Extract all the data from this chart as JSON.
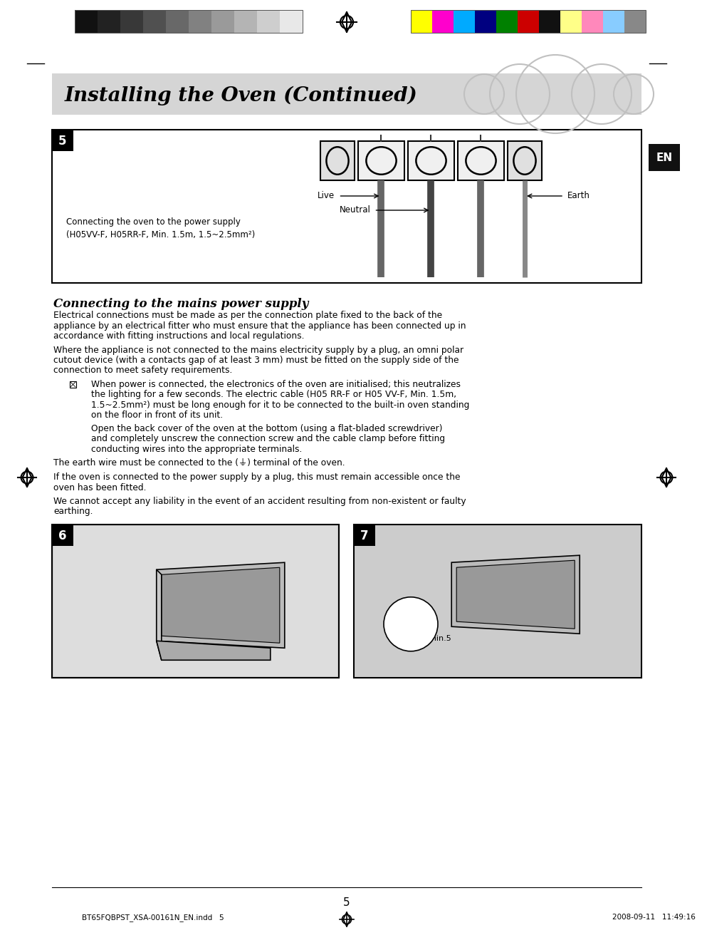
{
  "page_bg": "#ffffff",
  "header_bar_color": "#d3d3d3",
  "header_text": "Installing the Oven (Continued)",
  "header_font_size": 20,
  "en_label": "EN",
  "en_bg": "#1a1a1a",
  "en_text_color": "#ffffff",
  "section5_label": "5",
  "diagram_caption_line1": "Connecting the oven to the power supply",
  "diagram_caption_line2": "(H05VV-F, H05RR-F, Min. 1.5m, 1.5~2.5mm²)",
  "diagram_live_label": "Live",
  "diagram_neutral_label": "Neutral",
  "diagram_earth_label": "Earth",
  "section_title": "Connecting to the mains power supply",
  "para1": "Electrical connections must be made as per the connection plate fixed to the back of the\nappliance by an electrical fitter who must ensure that the appliance has been connected up in\naccordance with fitting instructions and local regulations.",
  "para2": "Where the appliance is not connected to the mains electricity supply by a plug, an omni polar\ncutout device (with a contacts gap of at least 3 mm) must be fitted on the supply side of the\nconnection to meet safety requirements.",
  "bullet1_line1": "When power is connected, the electronics of the oven are initialised; this neutralizes",
  "bullet1_line2": "the lighting for a few seconds. The electric cable (H05 RR-F or H05 VV-F, Min. 1.5m,",
  "bullet1_line3": "1.5~2.5mm²) must be long enough for it to be connected to the built-in oven standing",
  "bullet1_line4": "on the floor in front of its unit.",
  "bullet2_line1": "Open the back cover of the oven at the bottom (using a flat-bladed screwdriver)",
  "bullet2_line2": "and completely unscrew the connection screw and the cable clamp before fitting",
  "bullet2_line3": "conducting wires into the appropriate terminals.",
  "para3": "The earth wire must be connected to the (⏚) terminal of the oven.",
  "para4": "If the oven is connected to the power supply by a plug, this must remain accessible once the\noven has been fitted.",
  "para5": "We cannot accept any liability in the event of an accident resulting from non-existent or faulty\nearthing.",
  "section6_label": "6",
  "section7_label": "7",
  "page_number": "5",
  "footer_text": "BT65FQBPST_XSA-00161N_EN.indd   5",
  "footer_date": "2008-09-11   11:49:16",
  "gray_strips_left": [
    "#111111",
    "#222222",
    "#383838",
    "#505050",
    "#686868",
    "#818181",
    "#9a9a9a",
    "#b4b4b4",
    "#cecece",
    "#e8e8e8"
  ],
  "color_strips_right": [
    "#ffff00",
    "#ff00cc",
    "#00aaff",
    "#000080",
    "#008000",
    "#cc0000",
    "#111111",
    "#ffff88",
    "#ff88bb",
    "#88ccff",
    "#888888"
  ]
}
